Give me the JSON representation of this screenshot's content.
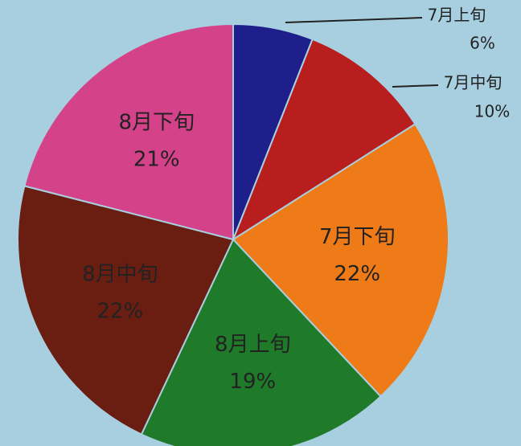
{
  "chart_data": {
    "type": "pie",
    "categories": [
      "7月上旬",
      "7月中旬",
      "7月下旬",
      "8月上旬",
      "8月中旬",
      "8月下旬"
    ],
    "values": [
      6,
      10,
      22,
      19,
      22,
      21
    ],
    "value_labels": [
      "6%",
      "10%",
      "22%",
      "19%",
      "22%",
      "21%"
    ],
    "colors": [
      "#1f1f8c",
      "#b81e1e",
      "#ef7a18",
      "#1f7a2a",
      "#6a1e12",
      "#d4428a"
    ]
  }
}
